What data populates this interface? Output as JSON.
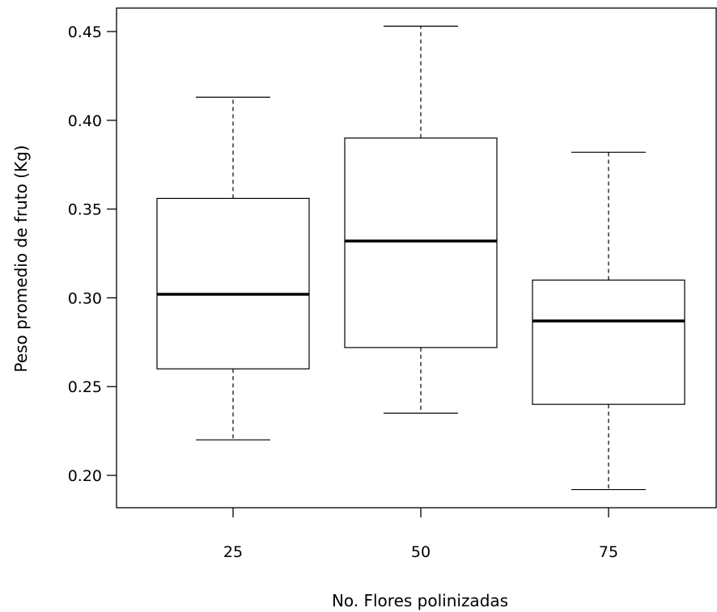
{
  "chart_data": {
    "type": "boxplot",
    "title": "",
    "xlabel": "No. Flores polinizadas",
    "ylabel": "Peso promedio de fruto (Kg)",
    "categories": [
      "25",
      "50",
      "75"
    ],
    "boxes": [
      {
        "category": "25",
        "whisker_low": 0.22,
        "q1": 0.26,
        "median": 0.302,
        "q3": 0.356,
        "whisker_high": 0.413
      },
      {
        "category": "50",
        "whisker_low": 0.235,
        "q1": 0.272,
        "median": 0.332,
        "q3": 0.39,
        "whisker_high": 0.453
      },
      {
        "category": "75",
        "whisker_low": 0.192,
        "q1": 0.24,
        "median": 0.287,
        "q3": 0.31,
        "whisker_high": 0.382
      }
    ],
    "yticks": [
      "0.20",
      "0.25",
      "0.30",
      "0.35",
      "0.40",
      "0.45"
    ],
    "ylim": [
      0.184,
      0.466
    ],
    "grid": false,
    "legend": "none"
  }
}
